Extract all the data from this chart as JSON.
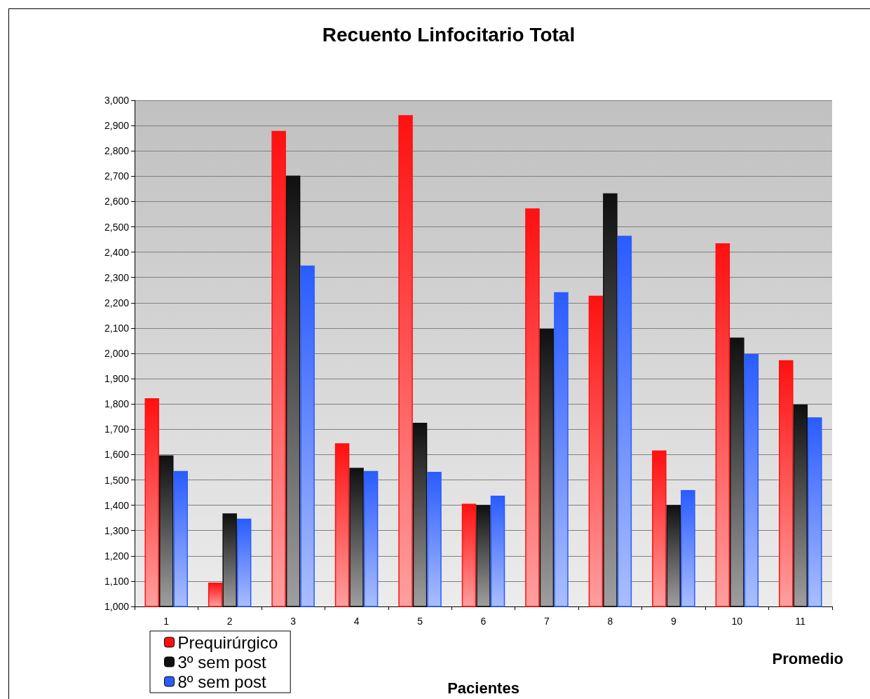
{
  "chart_data": {
    "type": "bar",
    "title": "Recuento Linfocitario Total",
    "xlabel": "Pacientes",
    "annotations": [
      "Promedio"
    ],
    "categories": [
      "1",
      "2",
      "3",
      "4",
      "5",
      "6",
      "7",
      "8",
      "9",
      "10",
      "11"
    ],
    "series": [
      {
        "name": "Prequirúrgico",
        "color": "#ff1010",
        "values": [
          1823,
          1094,
          2879,
          1645,
          2941,
          1406,
          2573,
          2228,
          1616,
          2435,
          1973
        ]
      },
      {
        "name": "3º sem post",
        "color": "#101010",
        "values": [
          1597,
          1368,
          2702,
          1548,
          1726,
          1401,
          2097,
          2632,
          1401,
          2062,
          1798
        ]
      },
      {
        "name": "8º sem post",
        "color": "#2a5cff",
        "values": [
          1535,
          1347,
          2347,
          1535,
          1532,
          1438,
          2242,
          2465,
          1460,
          1997,
          1747
        ]
      }
    ],
    "ylim": [
      1000,
      3000
    ],
    "yticks": [
      {
        "value": 1000,
        "label": "1,000"
      },
      {
        "value": 1100,
        "label": "1,100"
      },
      {
        "value": 1200,
        "label": "1,200"
      },
      {
        "value": 1300,
        "label": "1,300"
      },
      {
        "value": 1400,
        "label": "1,400"
      },
      {
        "value": 1500,
        "label": "1,500"
      },
      {
        "value": 1600,
        "label": "1,600"
      },
      {
        "value": 1700,
        "label": "1,700"
      },
      {
        "value": 1800,
        "label": "1,800"
      },
      {
        "value": 1900,
        "label": "1,900"
      },
      {
        "value": 2000,
        "label": "2,000"
      },
      {
        "value": 2100,
        "label": "2,100"
      },
      {
        "value": 2200,
        "label": "2,200"
      },
      {
        "value": 2300,
        "label": "2,300"
      },
      {
        "value": 2400,
        "label": "2,400"
      },
      {
        "value": 2500,
        "label": "2,500"
      },
      {
        "value": 2600,
        "label": "2,600"
      },
      {
        "value": 2700,
        "label": "2,700"
      },
      {
        "value": 2800,
        "label": "2,800"
      },
      {
        "value": 2900,
        "label": "2,900"
      },
      {
        "value": 3000,
        "label": "3,000"
      }
    ],
    "grid": "y",
    "legend": "bottom left"
  }
}
